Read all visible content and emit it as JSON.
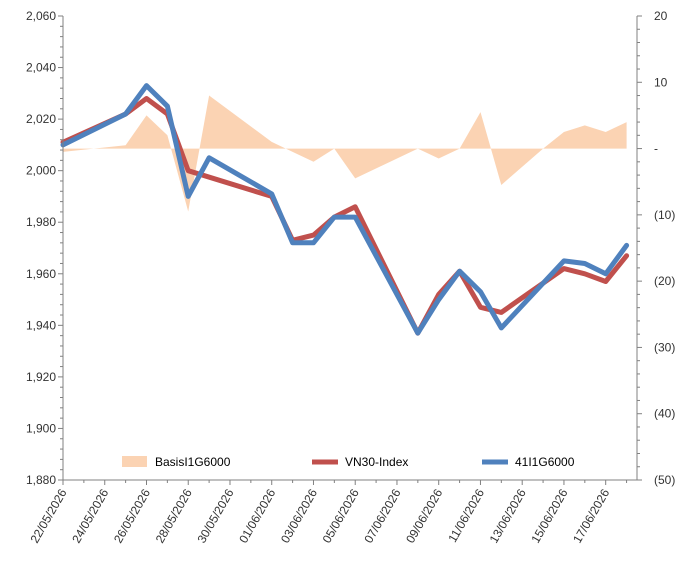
{
  "chart_data": {
    "type": "line",
    "x": [
      "22/05/2026",
      "23/05/2026",
      "24/05/2026",
      "25/05/2026",
      "26/05/2026",
      "27/05/2026",
      "28/05/2026",
      "29/05/2026",
      "30/05/2026",
      "31/05/2026",
      "01/06/2026",
      "02/06/2026",
      "03/06/2026",
      "04/06/2026",
      "05/06/2026",
      "06/06/2026",
      "07/06/2026",
      "08/06/2026",
      "09/06/2026",
      "10/06/2026",
      "11/06/2026",
      "12/06/2026",
      "13/06/2026",
      "14/06/2026",
      "15/06/2026",
      "16/06/2026",
      "17/06/2026",
      "18/06/2026"
    ],
    "x_tick_labels": [
      "22/05/2026",
      "24/05/2026",
      "26/05/2026",
      "28/05/2026",
      "30/05/2026",
      "01/06/2026",
      "03/06/2026",
      "05/06/2026",
      "07/06/2026",
      "09/06/2026",
      "11/06/2026",
      "13/06/2026",
      "15/06/2026",
      "17/06/2026"
    ],
    "y_left": {
      "ylim": [
        1880,
        2060
      ],
      "ticks": [
        "1,880",
        "1,900",
        "1,920",
        "1,940",
        "1,960",
        "1,980",
        "2,000",
        "2,020",
        "2,040",
        "2,060"
      ]
    },
    "y_right": {
      "ylim": [
        -50,
        20
      ],
      "ticks": [
        "(50)",
        "(40)",
        "(30)",
        "(20)",
        "(10)",
        "-",
        "10",
        "20"
      ]
    },
    "series": [
      {
        "name": "BasisI1G6000",
        "kind": "area",
        "axis": "right",
        "color": "#fbd3b3",
        "points": [
          [
            "22/05/2026",
            -0.5
          ],
          [
            "25/05/2026",
            0.5
          ],
          [
            "26/05/2026",
            5
          ],
          [
            "27/05/2026",
            2
          ],
          [
            "28/05/2026",
            -9.5
          ],
          [
            "29/05/2026",
            8
          ],
          [
            "01/06/2026",
            1
          ],
          [
            "02/06/2026",
            -0.5
          ],
          [
            "03/06/2026",
            -2
          ],
          [
            "04/06/2026",
            0
          ],
          [
            "05/06/2026",
            -4.5
          ],
          [
            "08/06/2026",
            0
          ],
          [
            "09/06/2026",
            -1.5
          ],
          [
            "10/06/2026",
            0
          ],
          [
            "11/06/2026",
            5.5
          ],
          [
            "12/06/2026",
            -5.5
          ],
          [
            "14/06/2026",
            0
          ],
          [
            "15/06/2026",
            2.5
          ],
          [
            "16/06/2026",
            3.5
          ],
          [
            "17/06/2026",
            2.5
          ],
          [
            "18/06/2026",
            4
          ]
        ]
      },
      {
        "name": "VN30-Index",
        "kind": "line",
        "axis": "left",
        "color": "#c0504d",
        "points": [
          [
            "22/05/2026",
            2011
          ],
          [
            "25/05/2026",
            2022
          ],
          [
            "26/05/2026",
            2028
          ],
          [
            "27/05/2026",
            2022
          ],
          [
            "28/05/2026",
            2000
          ],
          [
            "01/06/2026",
            1990
          ],
          [
            "02/06/2026",
            1973
          ],
          [
            "03/06/2026",
            1975
          ],
          [
            "04/06/2026",
            1982
          ],
          [
            "05/06/2026",
            1986
          ],
          [
            "08/06/2026",
            1937
          ],
          [
            "09/06/2026",
            1952
          ],
          [
            "10/06/2026",
            1961
          ],
          [
            "11/06/2026",
            1947
          ],
          [
            "12/06/2026",
            1945
          ],
          [
            "15/06/2026",
            1962
          ],
          [
            "16/06/2026",
            1960
          ],
          [
            "17/06/2026",
            1957
          ],
          [
            "18/06/2026",
            1967
          ]
        ]
      },
      {
        "name": "41I1G6000",
        "kind": "line",
        "axis": "left",
        "color": "#4f81bd",
        "points": [
          [
            "22/05/2026",
            2010
          ],
          [
            "25/05/2026",
            2022
          ],
          [
            "26/05/2026",
            2033
          ],
          [
            "27/05/2026",
            2025
          ],
          [
            "28/05/2026",
            1990
          ],
          [
            "29/05/2026",
            2005
          ],
          [
            "01/06/2026",
            1991
          ],
          [
            "02/06/2026",
            1972
          ],
          [
            "03/06/2026",
            1972
          ],
          [
            "04/06/2026",
            1982
          ],
          [
            "05/06/2026",
            1982
          ],
          [
            "08/06/2026",
            1937
          ],
          [
            "09/06/2026",
            1950
          ],
          [
            "10/06/2026",
            1961
          ],
          [
            "11/06/2026",
            1953
          ],
          [
            "12/06/2026",
            1939
          ],
          [
            "15/06/2026",
            1965
          ],
          [
            "16/06/2026",
            1964
          ],
          [
            "17/06/2026",
            1960
          ],
          [
            "18/06/2026",
            1971
          ]
        ]
      }
    ],
    "legend": {
      "placement": "bottom-inside"
    }
  }
}
